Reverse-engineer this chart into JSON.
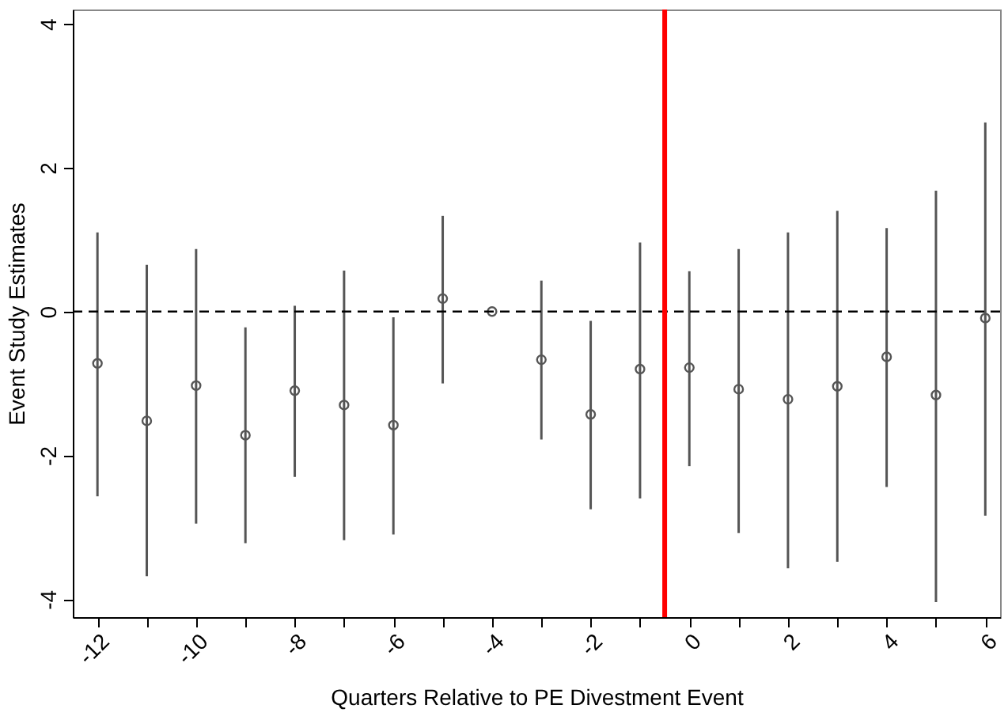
{
  "chart_data": {
    "type": "scatter",
    "xlabel": "Quarters Relative to PE Divestment Event",
    "ylabel": "Event Study Estimates",
    "x": [
      -12,
      -11,
      -10,
      -9,
      -8,
      -7,
      -6,
      -5,
      -4,
      -3,
      -2,
      -1,
      0,
      1,
      2,
      3,
      4,
      5,
      6
    ],
    "series": [
      {
        "color": "#555555",
        "values": [
          -0.72,
          -1.52,
          -1.03,
          -1.72,
          -1.1,
          -1.3,
          -1.58,
          0.18,
          0,
          -0.67,
          -1.43,
          -0.8,
          -0.78,
          -1.08,
          -1.22,
          -1.04,
          -0.63,
          -1.16,
          -0.09
        ],
        "errors": [
          [
            -2.57,
            1.1
          ],
          [
            -3.68,
            0.65
          ],
          [
            -2.95,
            0.87
          ],
          [
            -3.22,
            -0.22
          ],
          [
            -2.3,
            0.08
          ],
          [
            -3.18,
            0.57
          ],
          [
            -3.1,
            -0.08
          ],
          [
            -1.0,
            1.33
          ],
          null,
          [
            -1.78,
            0.43
          ],
          [
            -2.75,
            -0.13
          ],
          [
            -2.6,
            0.96
          ],
          [
            -2.15,
            0.56
          ],
          [
            -3.08,
            0.87
          ],
          [
            -3.57,
            1.1
          ],
          [
            -3.48,
            1.4
          ],
          [
            -2.44,
            1.16
          ],
          [
            -4.04,
            1.68
          ],
          [
            -2.84,
            2.63
          ]
        ]
      }
    ],
    "xlim": [
      -12.5,
      6.3
    ],
    "ylim": [
      -4.25,
      4.2
    ],
    "xticks": [
      -12,
      {
        "value": -11,
        "label": null
      },
      -10,
      {
        "value": -9,
        "label": null
      },
      -8,
      {
        "value": -7,
        "label": null
      },
      -6,
      {
        "value": -5,
        "label": null
      },
      -4,
      {
        "value": -3,
        "label": null
      },
      -2,
      {
        "value": -1,
        "label": null
      },
      0,
      {
        "value": 1,
        "label": null
      },
      2,
      {
        "value": 3,
        "label": null
      },
      4,
      {
        "value": 5,
        "label": null
      },
      6
    ],
    "yticks": [
      -4,
      -2,
      0,
      2,
      4
    ],
    "ref_lines": [
      {
        "axis": "y",
        "value": 0,
        "color": "#000000",
        "line_style": "dashed"
      },
      {
        "axis": "x",
        "value": -0.5,
        "color": "#ff0000",
        "line_style": "solid"
      }
    ],
    "marker": "circle",
    "grid": false
  }
}
